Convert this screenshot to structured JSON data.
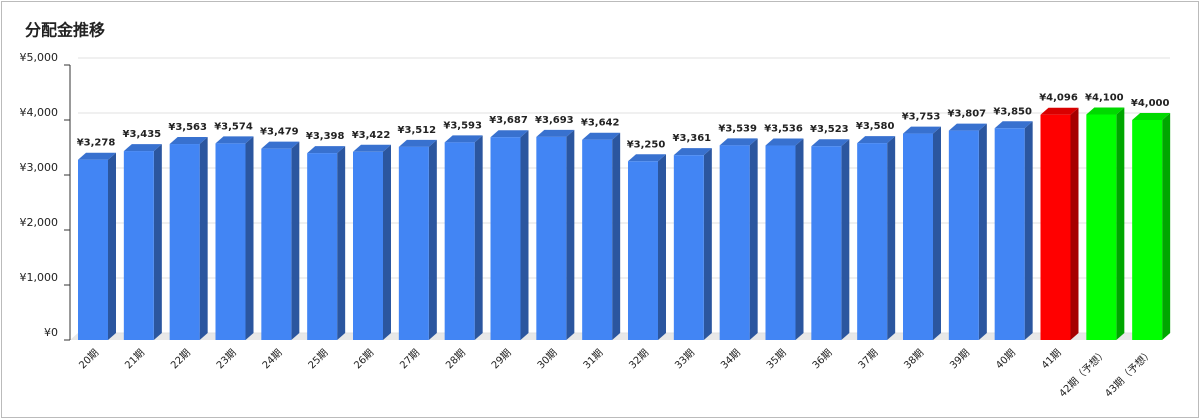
{
  "chart_data": {
    "type": "bar3d",
    "title": "分配金推移",
    "categories": [
      "20期",
      "21期",
      "22期",
      "23期",
      "24期",
      "25期",
      "26期",
      "27期",
      "28期",
      "29期",
      "30期",
      "31期",
      "32期",
      "33期",
      "34期",
      "35期",
      "36期",
      "37期",
      "38期",
      "39期",
      "40期",
      "41期",
      "42期（予想）",
      "43期（予想）"
    ],
    "values": [
      3278,
      3435,
      3563,
      3574,
      3479,
      3398,
      3422,
      3512,
      3593,
      3687,
      3693,
      3642,
      3250,
      3361,
      3539,
      3536,
      3523,
      3580,
      3753,
      3807,
      3850,
      4096,
      4100,
      4000
    ],
    "value_labels": [
      "¥3,278",
      "¥3,435",
      "¥3,563",
      "¥3,574",
      "¥3,479",
      "¥3,398",
      "¥3,422",
      "¥3,512",
      "¥3,593",
      "¥3,687",
      "¥3,693",
      "¥3,642",
      "¥3,250",
      "¥3,361",
      "¥3,539",
      "¥3,536",
      "¥3,523",
      "¥3,580",
      "¥3,753",
      "¥3,807",
      "¥3,850",
      "¥4,096",
      "¥4,100",
      "¥4,000"
    ],
    "colors": [
      "#4285f4",
      "#4285f4",
      "#4285f4",
      "#4285f4",
      "#4285f4",
      "#4285f4",
      "#4285f4",
      "#4285f4",
      "#4285f4",
      "#4285f4",
      "#4285f4",
      "#4285f4",
      "#4285f4",
      "#4285f4",
      "#4285f4",
      "#4285f4",
      "#4285f4",
      "#4285f4",
      "#4285f4",
      "#4285f4",
      "#4285f4",
      "#ff0000",
      "#00ff00",
      "#00ff00"
    ],
    "ylim": [
      0,
      5000
    ],
    "yticks": [
      {
        "value": 0,
        "label": "¥0"
      },
      {
        "value": 1000,
        "label": "¥1,000"
      },
      {
        "value": 2000,
        "label": "¥2,000"
      },
      {
        "value": 3000,
        "label": "¥3,000"
      },
      {
        "value": 4000,
        "label": "¥4,000"
      },
      {
        "value": 5000,
        "label": "¥5,000"
      }
    ],
    "grid": true
  }
}
